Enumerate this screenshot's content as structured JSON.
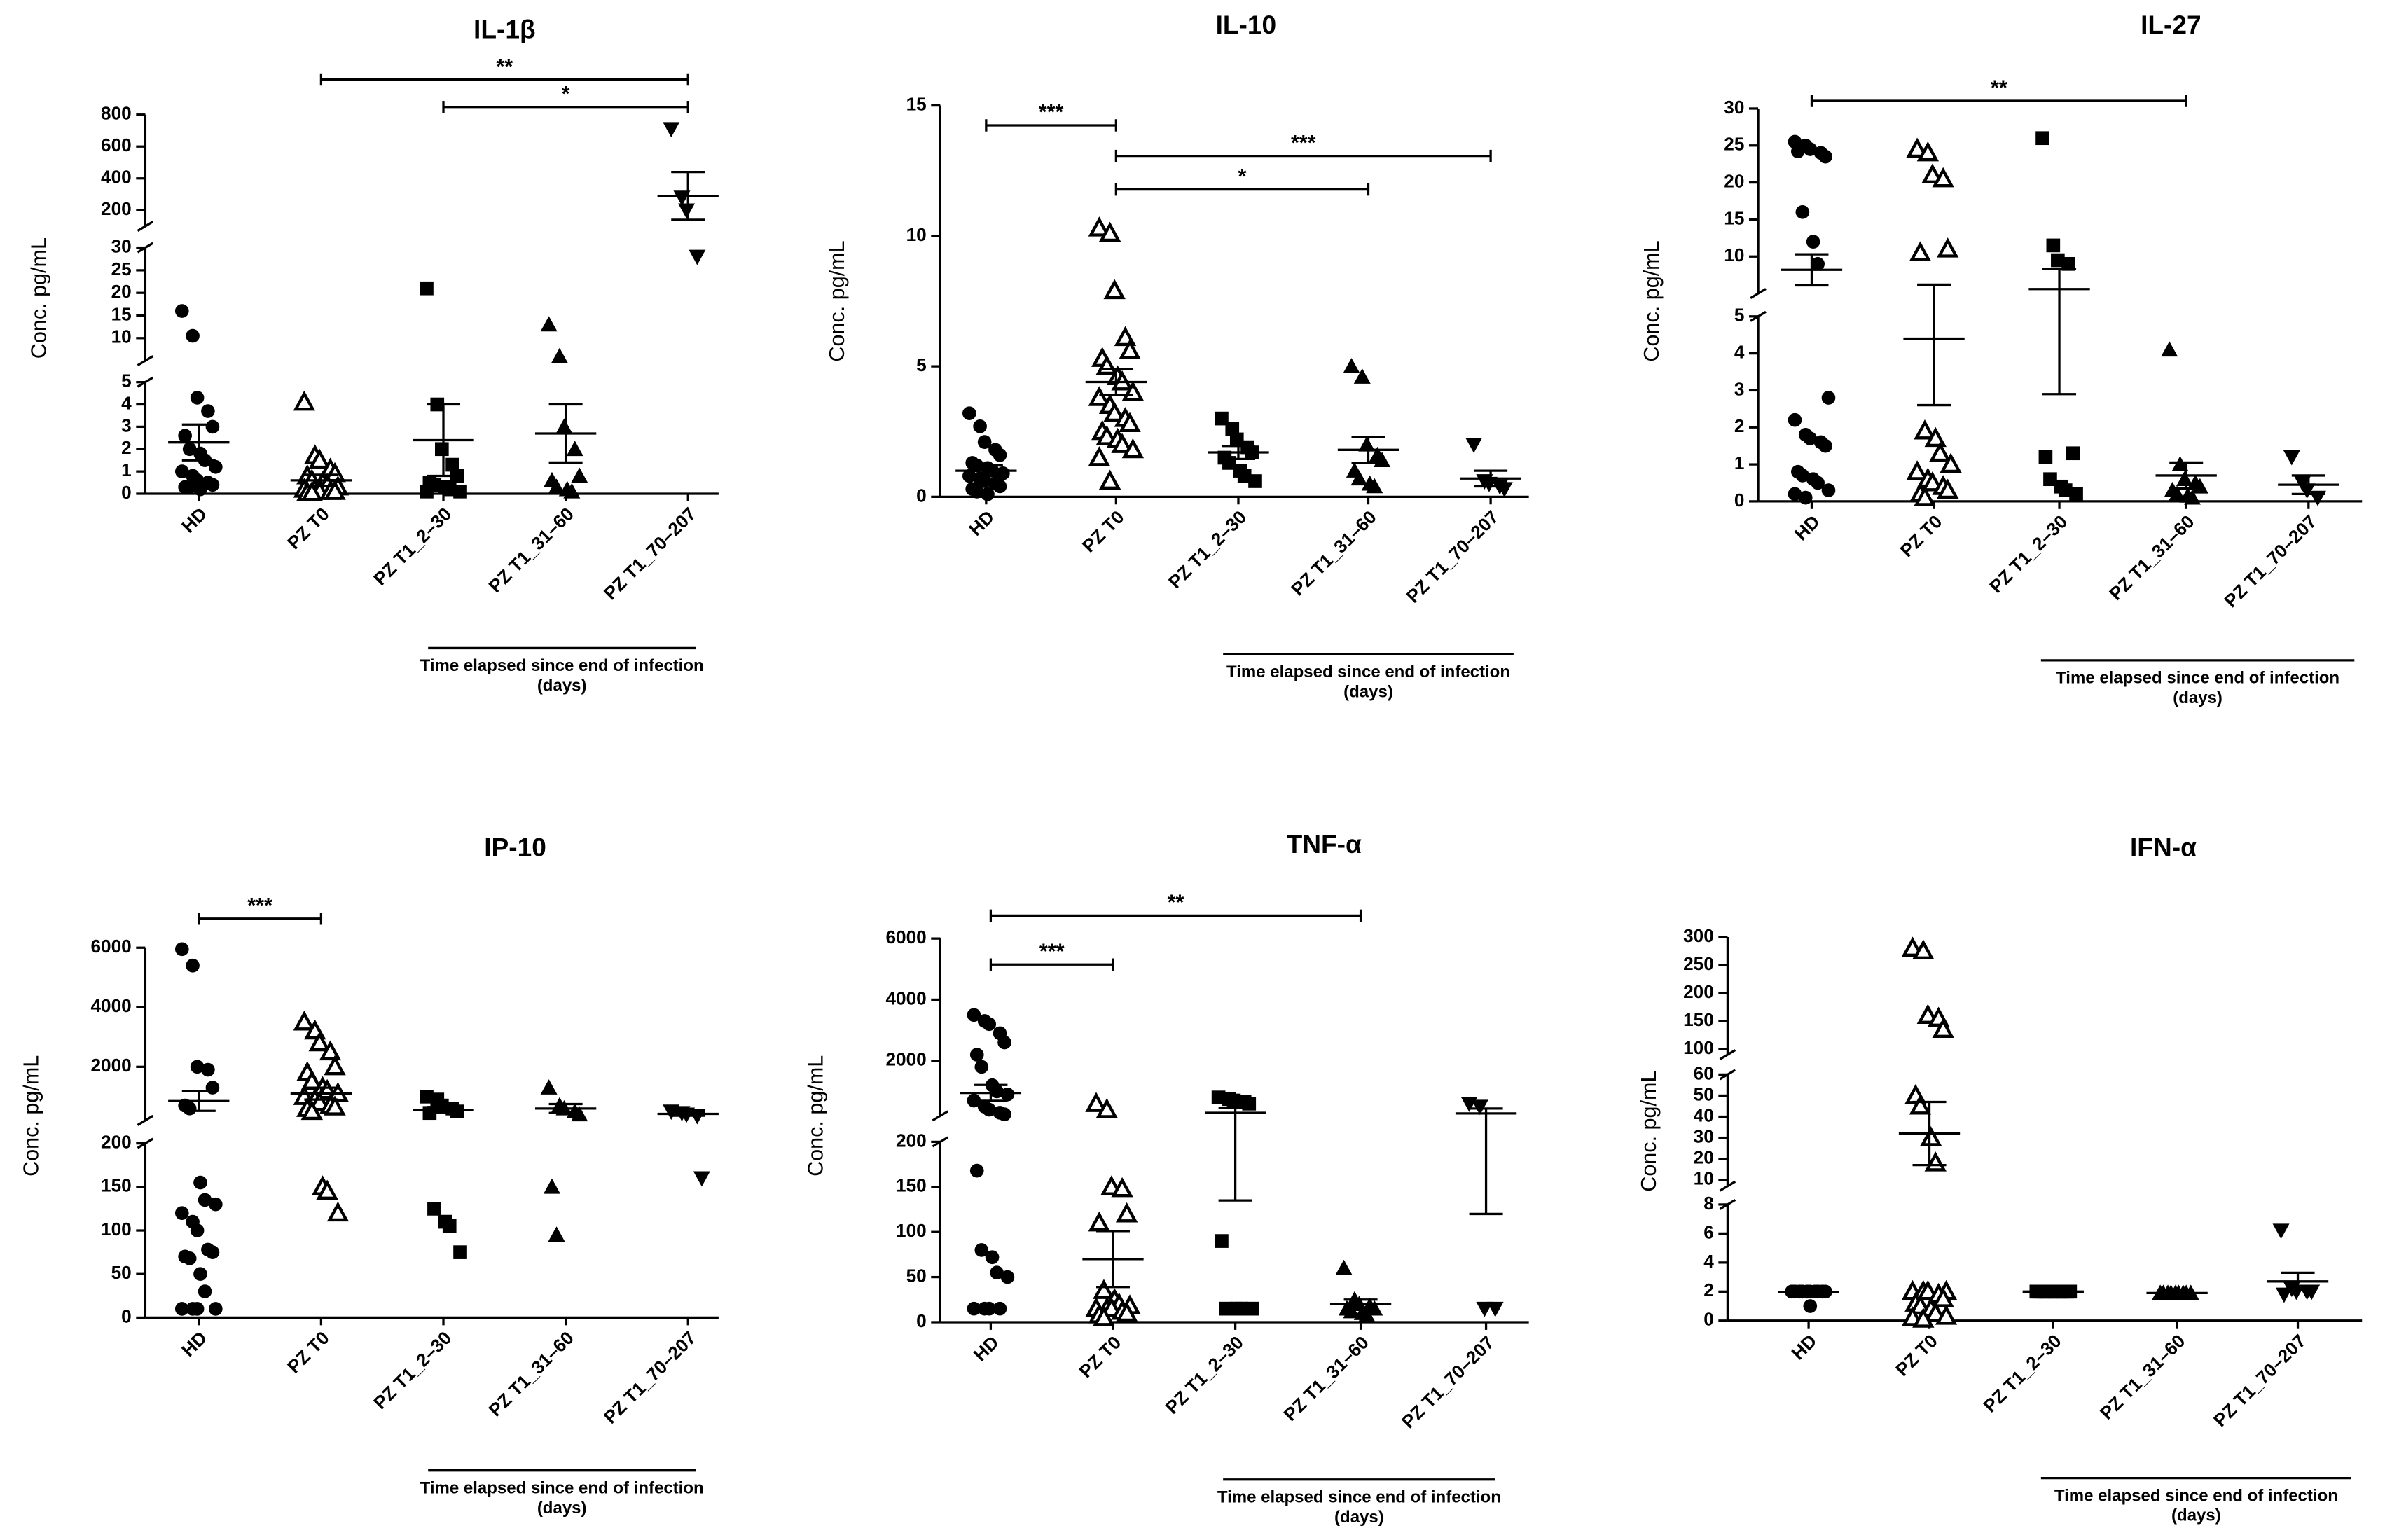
{
  "chart_data": [
    {
      "type": "scatter",
      "title": "IL-1β",
      "y_label": "Conc. pg/mL",
      "categories": [
        "HD",
        "PZ  T0",
        "PZ  T1_2–30",
        "PZ  T1_31–60",
        "PZ  T1_70–207"
      ],
      "markers": [
        "circle",
        "triangle-open",
        "square",
        "triangle",
        "triangle-down"
      ],
      "color": "#000000",
      "y_segments": [
        {
          "ylim": [
            0,
            5
          ],
          "yticks": [
            0,
            1,
            2,
            3,
            4,
            5
          ]
        },
        {
          "ylim": [
            5,
            30
          ],
          "yticks": [
            10,
            15,
            20,
            25,
            30
          ]
        },
        {
          "ylim": [
            100,
            800
          ],
          "yticks": [
            200,
            400,
            600,
            800
          ]
        }
      ],
      "values": [
        [
          16,
          10.5,
          4.3,
          3.7,
          3,
          2.6,
          2,
          1.8,
          1.5,
          1.2,
          1,
          0.8,
          0.6,
          0.5,
          0.4,
          0.3,
          0.3,
          0.2
        ],
        [
          4.1,
          1.7,
          1.5,
          1.1,
          0.9,
          0.8,
          0.6,
          0.5,
          0.4,
          0.3,
          0.2,
          0.2,
          0.1,
          0.1,
          0.1,
          0.05,
          0.05
        ],
        [
          21,
          4,
          2,
          1.3,
          0.8,
          0.5,
          0.4,
          0.3,
          0.2,
          0.1,
          0.1
        ],
        [
          13,
          6,
          3,
          2,
          0.8,
          0.6,
          0.3,
          0.2,
          0.1
        ],
        [
          710,
          280,
          200,
          28
        ]
      ],
      "mean": [
        2.3,
        0.6,
        2.4,
        2.7,
        290
      ],
      "sem": [
        0.8,
        0.25,
        1.6,
        1.3,
        150
      ],
      "annotations": [
        {
          "from": 1,
          "to": 4,
          "label": "**"
        },
        {
          "from": 2,
          "to": 4,
          "label": "*"
        }
      ],
      "group_label": [
        "Time elapsed since end of infection",
        "(days)"
      ],
      "group_span": [
        2,
        4
      ]
    },
    {
      "type": "scatter",
      "title": "IL-10",
      "y_label": "Conc. pg/mL",
      "categories": [
        "HD",
        "PZ  T0",
        "PZ  T1_2–30",
        "PZ  T1_31–60",
        "PZ  T1_70–207"
      ],
      "markers": [
        "circle",
        "triangle-open",
        "square",
        "triangle",
        "triangle-down"
      ],
      "color": "#000000",
      "y_segments": [
        {
          "ylim": [
            0,
            15
          ],
          "yticks": [
            0,
            5,
            10,
            15
          ]
        }
      ],
      "values": [
        [
          3.2,
          2.7,
          2.1,
          1.8,
          1.6,
          1.3,
          1.2,
          1.1,
          1,
          0.9,
          0.8,
          0.7,
          0.6,
          0.5,
          0.4,
          0.3,
          0.2,
          0.1
        ],
        [
          10.3,
          10.1,
          7.9,
          6.1,
          5.6,
          5.3,
          5,
          4.6,
          4.4,
          4,
          3.8,
          3.5,
          3.2,
          3,
          2.8,
          2.5,
          2.3,
          2.2,
          2,
          1.8,
          1.5,
          0.6
        ],
        [
          3,
          2.6,
          2.2,
          1.9,
          1.7,
          1.5,
          1.3,
          1,
          0.8,
          0.6
        ],
        [
          5,
          4.6,
          2,
          1.6,
          1.4,
          1,
          0.7,
          0.5,
          0.4
        ],
        [
          2,
          0.6,
          0.5,
          0.4,
          0.3
        ]
      ],
      "mean": [
        1.0,
        4.4,
        1.7,
        1.8,
        0.7
      ],
      "sem": [
        0.2,
        0.5,
        0.25,
        0.5,
        0.3
      ],
      "annotations": [
        {
          "from": 0,
          "to": 1,
          "label": "***"
        },
        {
          "from": 1,
          "to": 4,
          "label": "***"
        },
        {
          "from": 1,
          "to": 3,
          "label": "*"
        }
      ],
      "group_label": [
        "Time elapsed since end of infection",
        "(days)"
      ],
      "group_span": [
        2,
        4
      ]
    },
    {
      "type": "scatter",
      "title": "IL-27",
      "y_label": "Conc. pg/mL",
      "categories": [
        "HD",
        "PZ  T0",
        "PZ  T1_2–30",
        "PZ  T1_31–60",
        "PZ  T1_70–207"
      ],
      "markers": [
        "circle",
        "triangle-open",
        "square",
        "triangle",
        "triangle-down"
      ],
      "color": "#000000",
      "y_segments": [
        {
          "ylim": [
            0,
            5
          ],
          "yticks": [
            0,
            1,
            2,
            3,
            4,
            5
          ]
        },
        {
          "ylim": [
            5,
            30
          ],
          "yticks": [
            10,
            15,
            20,
            25,
            30
          ]
        }
      ],
      "values": [
        [
          25.5,
          25,
          24.5,
          24,
          23.5,
          24.2,
          16,
          12,
          9,
          2.8,
          2.2,
          1.8,
          1.7,
          1.6,
          1.5,
          0.8,
          0.7,
          0.6,
          0.5,
          0.3,
          0.2,
          0.1
        ],
        [
          24.5,
          24,
          21,
          20.5,
          11,
          10.5,
          1.9,
          1.7,
          1.3,
          1,
          0.8,
          0.6,
          0.5,
          0.4,
          0.3,
          0.2,
          0.1
        ],
        [
          26,
          11.5,
          9.5,
          9,
          1.3,
          1.2,
          0.6,
          0.4,
          0.3,
          0.2
        ],
        [
          4.1,
          1,
          0.6,
          0.5,
          0.4,
          0.3,
          0.2,
          0.15,
          0.1
        ],
        [
          1.2,
          0.5,
          0.3,
          0.1
        ]
      ],
      "mean": [
        8.2,
        4.4,
        5.6,
        0.7,
        0.45
      ],
      "sem": [
        2.1,
        1.8,
        2.7,
        0.35,
        0.25
      ],
      "annotations": [
        {
          "from": 0,
          "to": 3,
          "label": "**"
        }
      ],
      "group_label": [
        "Time elapsed since end of infection",
        "(days)"
      ],
      "group_span": [
        2,
        4
      ]
    },
    {
      "type": "scatter",
      "title": "IP-10",
      "y_label": "Conc. pg/mL",
      "categories": [
        "HD",
        "PZ  T0",
        "PZ  T1_2–30",
        "PZ  T1_31–60",
        "PZ  T1_70–207"
      ],
      "markers": [
        "circle",
        "triangle-open",
        "square",
        "triangle",
        "triangle-down"
      ],
      "color": "#000000",
      "y_segments": [
        {
          "ylim": [
            0,
            200
          ],
          "yticks": [
            0,
            50,
            100,
            150,
            200
          ]
        },
        {
          "ylim": [
            200,
            6000
          ],
          "yticks": [
            2000,
            4000,
            6000
          ]
        }
      ],
      "values": [
        [
          5950,
          5400,
          2000,
          1900,
          1300,
          700,
          600,
          155,
          135,
          130,
          120,
          110,
          100,
          78,
          75,
          70,
          68,
          50,
          30,
          10,
          10,
          10,
          10
        ],
        [
          3500,
          3200,
          2800,
          2500,
          2000,
          1800,
          1500,
          1300,
          1200,
          1100,
          1000,
          900,
          800,
          700,
          650,
          600,
          500,
          150,
          145,
          120
        ],
        [
          1000,
          900,
          700,
          600,
          500,
          450,
          125,
          110,
          105,
          75
        ],
        [
          1300,
          700,
          600,
          500,
          400,
          150,
          95
        ],
        [
          500,
          450,
          400,
          350,
          160
        ]
      ],
      "mean": [
        850,
        1100,
        550,
        600,
        420
      ],
      "sem": [
        330,
        200,
        100,
        150,
        60
      ],
      "annotations": [
        {
          "from": 0,
          "to": 1,
          "label": "***"
        }
      ],
      "group_label": [
        "Time elapsed since end of infection",
        "(days)"
      ],
      "group_span": [
        2,
        4
      ]
    },
    {
      "type": "scatter",
      "title": "TNF-α",
      "y_label": "Conc. pg/mL",
      "categories": [
        "HD",
        "PZ  T0",
        "PZ  T1_2–30",
        "PZ  T1_31–60",
        "PZ  T1_70–207"
      ],
      "markers": [
        "circle",
        "triangle-open",
        "square",
        "triangle",
        "triangle-down"
      ],
      "color": "#000000",
      "y_segments": [
        {
          "ylim": [
            0,
            200
          ],
          "yticks": [
            0,
            50,
            100,
            150,
            200
          ]
        },
        {
          "ylim": [
            200,
            6000
          ],
          "yticks": [
            2000,
            4000,
            6000
          ]
        }
      ],
      "values": [
        [
          3500,
          3300,
          3200,
          2900,
          2600,
          2200,
          1800,
          1200,
          1000,
          900,
          700,
          500,
          400,
          300,
          250,
          168,
          80,
          72,
          55,
          50,
          15,
          15,
          15,
          15
        ],
        [
          600,
          400,
          150,
          148,
          120,
          110,
          35,
          25,
          20,
          18,
          15,
          15,
          15,
          12,
          10,
          8,
          5
        ],
        [
          800,
          750,
          700,
          650,
          600,
          90,
          15,
          15,
          15,
          15
        ],
        [
          60,
          25,
          20,
          18,
          15,
          15,
          12,
          10,
          8
        ],
        [
          600,
          500,
          15,
          15
        ]
      ],
      "mean": [
        950,
        70,
        300,
        20,
        280
      ],
      "sem": [
        260,
        31,
        165,
        5,
        160
      ],
      "annotations": [
        {
          "from": 0,
          "to": 1,
          "label": "***"
        },
        {
          "from": 0,
          "to": 3,
          "label": "**"
        }
      ],
      "group_label": [
        "Time elapsed since end of infection",
        "(days)"
      ],
      "group_span": [
        2,
        4
      ]
    },
    {
      "type": "scatter",
      "title": "IFN-α",
      "y_label": "Conc. pg/mL",
      "categories": [
        "HD",
        "PZ  T0",
        "PZ  T1_2–30",
        "PZ  T1_31–60",
        "PZ  T1_70–207"
      ],
      "markers": [
        "circle",
        "triangle-open",
        "square",
        "triangle",
        "triangle-down"
      ],
      "color": "#000000",
      "y_segments": [
        {
          "ylim": [
            0,
            8
          ],
          "yticks": [
            0,
            2,
            4,
            6,
            8
          ]
        },
        {
          "ylim": [
            7,
            60
          ],
          "yticks": [
            10,
            20,
            30,
            40,
            50,
            60
          ]
        },
        {
          "ylim": [
            90,
            300
          ],
          "yticks": [
            100,
            150,
            200,
            250,
            300
          ]
        }
      ],
      "values": [
        [
          2,
          2,
          2,
          2,
          2,
          2,
          2,
          2,
          2,
          2,
          2,
          2,
          2,
          2,
          2,
          2,
          2,
          1
        ],
        [
          280,
          275,
          160,
          155,
          135,
          50,
          45,
          30,
          18,
          2,
          2,
          2,
          2,
          1.8,
          1.5,
          1.2,
          1,
          0.8,
          0.5,
          0.3,
          0.2,
          0.1
        ],
        [
          2,
          2,
          2,
          2,
          2,
          2,
          2,
          2,
          2,
          2
        ],
        [
          1.9,
          1.9,
          1.9,
          1.9,
          1.9,
          1.9,
          1.9,
          1.9,
          1.9
        ],
        [
          6.2,
          2.2,
          2,
          2,
          2,
          1.8
        ]
      ],
      "mean": [
        1.95,
        32,
        2,
        1.9,
        2.7
      ],
      "sem": [
        0.05,
        15,
        0,
        0,
        0.6
      ],
      "annotations": [],
      "group_label": [
        "Time elapsed since end of infection",
        "(days)"
      ],
      "group_span": [
        2,
        4
      ]
    }
  ]
}
